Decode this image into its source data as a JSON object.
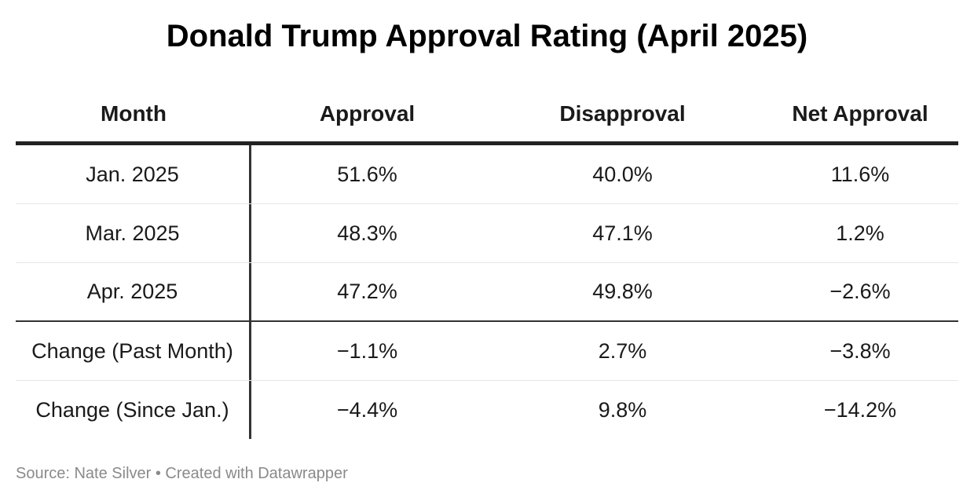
{
  "title": "Donald Trump Approval Rating (April 2025)",
  "source": "Source: Nate Silver • Created with Datawrapper",
  "chart_data": {
    "type": "table",
    "title": "Donald Trump Approval Rating (April 2025)",
    "columns": [
      "Month",
      "Approval",
      "Disapproval",
      "Net Approval"
    ],
    "rows": [
      [
        "Jan. 2025",
        "51.6%",
        "40.0%",
        "11.6%"
      ],
      [
        "Mar. 2025",
        "48.3%",
        "47.1%",
        "1.2%"
      ],
      [
        "Apr. 2025",
        "47.2%",
        "49.8%",
        "−2.6%"
      ],
      [
        "Change (Past Month)",
        "−1.1%",
        "2.7%",
        "−3.8%"
      ],
      [
        "Change (Since Jan.)",
        "−4.4%",
        "9.8%",
        "−14.2%"
      ]
    ]
  }
}
